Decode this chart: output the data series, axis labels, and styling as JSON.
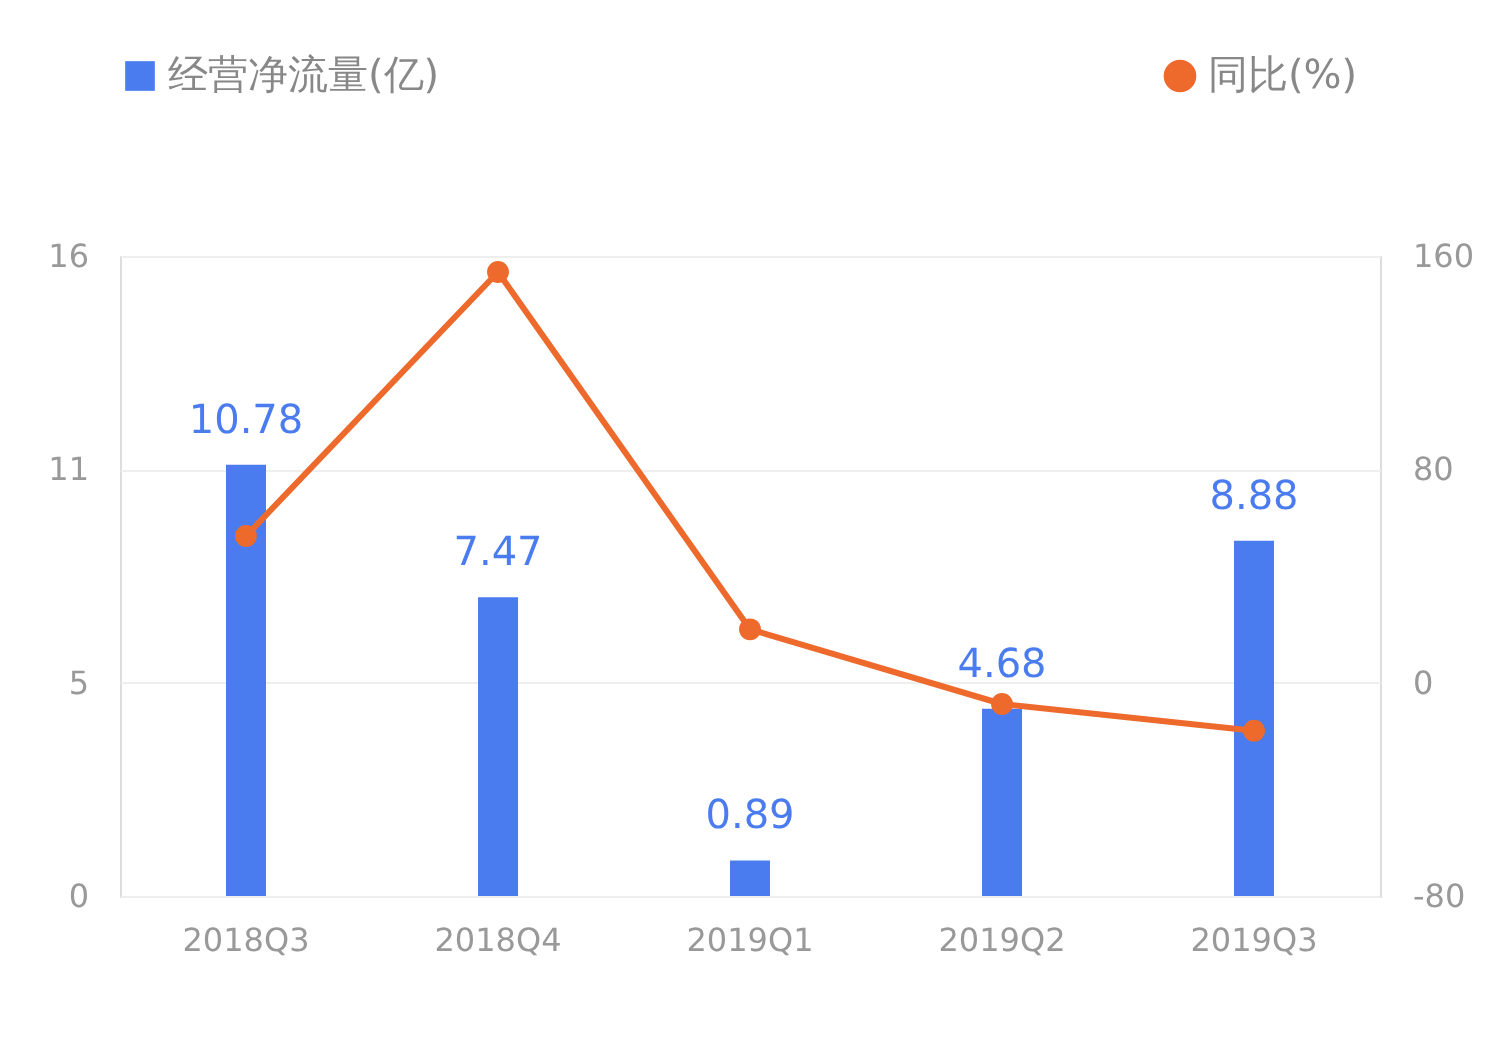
{
  "chart_data": {
    "type": "bar",
    "categories": [
      "2018Q3",
      "2018Q4",
      "2019Q1",
      "2019Q2",
      "2019Q3"
    ],
    "series": [
      {
        "name": "经营净流量(亿)",
        "color": "#4a7cf0",
        "values": [
          10.78,
          7.47,
          0.89,
          4.68,
          8.88
        ],
        "value_labels": [
          "10.78",
          "7.47",
          "0.89",
          "4.68",
          "8.88"
        ]
      },
      {
        "name": "同比(%)",
        "type": "line",
        "axis": "y2",
        "color": "#ee6a2c",
        "marker": "circle",
        "values": [
          55,
          154,
          20,
          -8,
          -18
        ]
      }
    ],
    "ylim": [
      0,
      16
    ],
    "yticks": [
      0,
      {
        "value": 5.333,
        "label": "5"
      },
      {
        "value": 10.667,
        "label": "11"
      },
      16
    ],
    "y2lim": [
      -80,
      160
    ],
    "y2ticks": [
      -80,
      0,
      80,
      160
    ],
    "grid": "y",
    "legend": "top"
  }
}
